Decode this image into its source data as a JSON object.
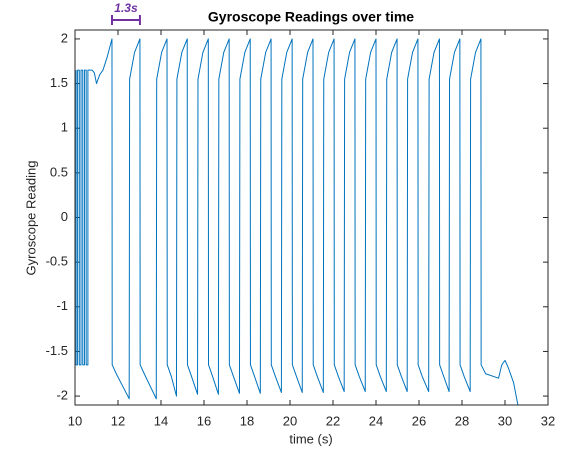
{
  "chart_data": {
    "type": "line",
    "title": "Gyroscope Readings over time",
    "xlabel": "time (s)",
    "ylabel": "Gyroscope Reading",
    "color": "#0072bd",
    "xlim": [
      10,
      32
    ],
    "xticks": [
      10,
      12,
      14,
      16,
      18,
      20,
      22,
      24,
      26,
      28,
      30,
      32
    ],
    "ylim": [
      -2.1,
      2.1
    ],
    "yticks": [
      -2,
      -1.5,
      -1,
      -0.5,
      0,
      0.5,
      1,
      1.5,
      2
    ],
    "grid": false,
    "annotations": [
      {
        "text": "1.3s",
        "x_range": [
          11.72,
          13.02
        ],
        "color": "#7030a0"
      }
    ],
    "x": [
      10.05,
      10.05,
      10.12,
      10.12,
      10.2,
      10.2,
      10.28,
      10.28,
      10.36,
      10.36,
      10.44,
      10.44,
      10.52,
      10.52,
      10.6,
      10.6,
      10.8,
      10.9,
      11.0,
      11.15,
      11.3,
      11.5,
      11.72,
      11.73,
      11.92,
      12.52,
      12.54,
      12.77,
      13.02,
      13.03,
      13.22,
      13.78,
      13.8,
      14.03,
      14.28,
      14.29,
      14.48,
      14.72,
      14.74,
      14.97,
      15.22,
      15.23,
      15.42,
      15.7,
      15.72,
      15.95,
      16.2,
      16.21,
      16.4,
      16.67,
      16.69,
      16.92,
      17.17,
      17.18,
      17.37,
      17.65,
      17.67,
      17.9,
      18.15,
      18.16,
      18.35,
      18.62,
      18.64,
      18.87,
      19.12,
      19.13,
      19.32,
      19.6,
      19.62,
      19.85,
      20.1,
      20.11,
      20.3,
      20.57,
      20.59,
      20.82,
      21.07,
      21.08,
      21.27,
      21.55,
      21.57,
      21.8,
      22.05,
      22.06,
      22.25,
      22.52,
      22.54,
      22.77,
      23.02,
      23.03,
      23.22,
      23.5,
      23.52,
      23.75,
      24.0,
      24.01,
      24.2,
      24.48,
      24.5,
      24.73,
      24.98,
      24.99,
      25.18,
      25.45,
      25.47,
      25.7,
      25.95,
      25.96,
      26.15,
      26.45,
      26.47,
      26.7,
      26.95,
      26.96,
      27.15,
      27.4,
      27.42,
      27.65,
      27.9,
      27.91,
      28.1,
      28.38,
      28.4,
      28.63,
      28.88,
      28.89,
      29.1,
      29.7,
      29.85,
      30.0,
      30.15,
      30.4,
      30.6
    ],
    "values": [
      1.65,
      -1.65,
      -1.65,
      1.65,
      1.65,
      -1.65,
      -1.65,
      1.65,
      1.65,
      -1.65,
      -1.65,
      1.65,
      1.65,
      -1.65,
      -1.65,
      1.65,
      1.65,
      1.62,
      1.5,
      1.6,
      1.65,
      1.8,
      2.0,
      -1.65,
      -1.75,
      -2.03,
      1.55,
      1.85,
      2.0,
      -1.65,
      -1.75,
      -2.03,
      1.55,
      1.85,
      2.0,
      -1.65,
      -1.78,
      -2.0,
      1.55,
      1.85,
      2.0,
      -1.65,
      -1.78,
      -1.98,
      1.55,
      1.85,
      2.0,
      -1.65,
      -1.78,
      -1.98,
      1.55,
      1.85,
      2.0,
      -1.65,
      -1.78,
      -1.97,
      1.55,
      1.85,
      2.0,
      -1.65,
      -1.78,
      -1.97,
      1.55,
      1.85,
      2.0,
      -1.65,
      -1.78,
      -1.96,
      1.55,
      1.85,
      2.0,
      -1.65,
      -1.78,
      -1.96,
      1.55,
      1.85,
      2.0,
      -1.65,
      -1.78,
      -1.96,
      1.55,
      1.85,
      2.0,
      -1.65,
      -1.78,
      -1.95,
      1.55,
      1.85,
      2.0,
      -1.65,
      -1.78,
      -1.95,
      1.55,
      1.85,
      2.0,
      -1.65,
      -1.78,
      -1.95,
      1.55,
      1.85,
      2.0,
      -1.65,
      -1.78,
      -1.95,
      1.55,
      1.85,
      2.0,
      -1.65,
      -1.78,
      -1.95,
      1.55,
      1.85,
      2.0,
      -1.65,
      -1.78,
      -1.95,
      1.55,
      1.85,
      2.0,
      -1.65,
      -1.78,
      -1.95,
      1.55,
      1.85,
      2.0,
      -1.65,
      -1.75,
      -1.8,
      -1.65,
      -1.6,
      -1.68,
      -1.85,
      -2.1
    ]
  }
}
